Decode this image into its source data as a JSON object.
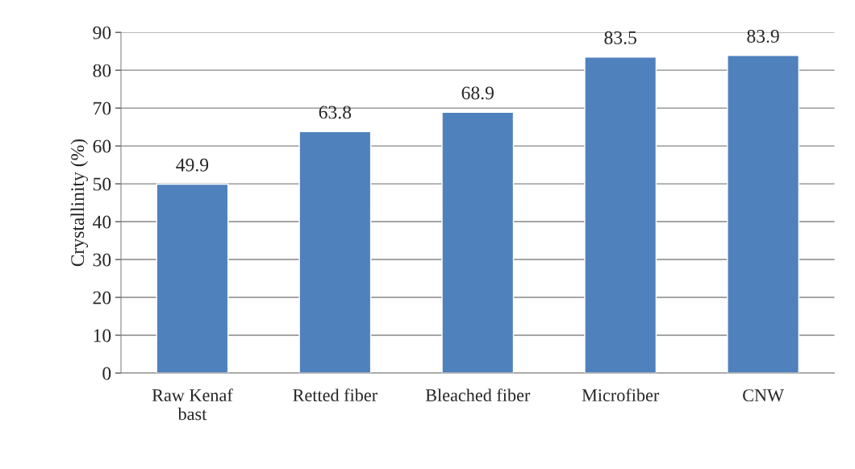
{
  "chart_data": {
    "type": "bar",
    "ylabel": "Crystallinity (%)",
    "categories": [
      "Raw Kenaf\nbast",
      "Retted fiber",
      "Bleached fiber",
      "Microfiber",
      "CNW"
    ],
    "values": [
      49.9,
      63.8,
      68.9,
      83.5,
      83.9
    ],
    "color": "#4f81bd",
    "ylim": [
      0,
      90
    ],
    "yticks": [
      0,
      10,
      20,
      30,
      40,
      50,
      60,
      70,
      80,
      90
    ],
    "grid": "y",
    "data_labels": true
  }
}
